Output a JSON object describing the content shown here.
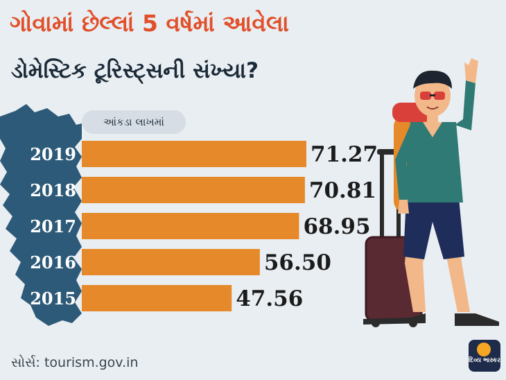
{
  "header": {
    "title_line1": "ગોવામાં છેલ્લાં 5 વર્ષમાં આવેલા",
    "title_line2": "ડોમેસ્ટિક ટૂરિસ્ટ્સની સંખ્યા?"
  },
  "unit_label": "આંકડા લાખમાં",
  "source": "સોર્સ: tourism.gov.in",
  "brand": {
    "logo_text": "દિવ્ય ભાસ્કર"
  },
  "colors": {
    "bar": "#e6892b",
    "title_accent": "#e0502a",
    "title_dark": "#1b2a38",
    "map": "#2d5a78",
    "background": "#e9eef2"
  },
  "chart_data": {
    "type": "bar",
    "orientation": "horizontal",
    "categories": [
      "2019",
      "2018",
      "2017",
      "2016",
      "2015"
    ],
    "values": [
      71.27,
      70.81,
      68.95,
      56.5,
      47.56
    ],
    "value_labels": [
      "71.27",
      "70.81",
      "68.95",
      "56.50",
      "47.56"
    ],
    "title": "ગોવામાં છેલ્લાં 5 વર્ષમાં આવેલા ડોમેસ્ટિક ટૂરિસ્ટ્સની સંખ્યા?",
    "xlabel": "આંકડા લાખમાં",
    "ylabel": "",
    "xlim": [
      0,
      71.27
    ],
    "grid": false,
    "legend": "none"
  }
}
